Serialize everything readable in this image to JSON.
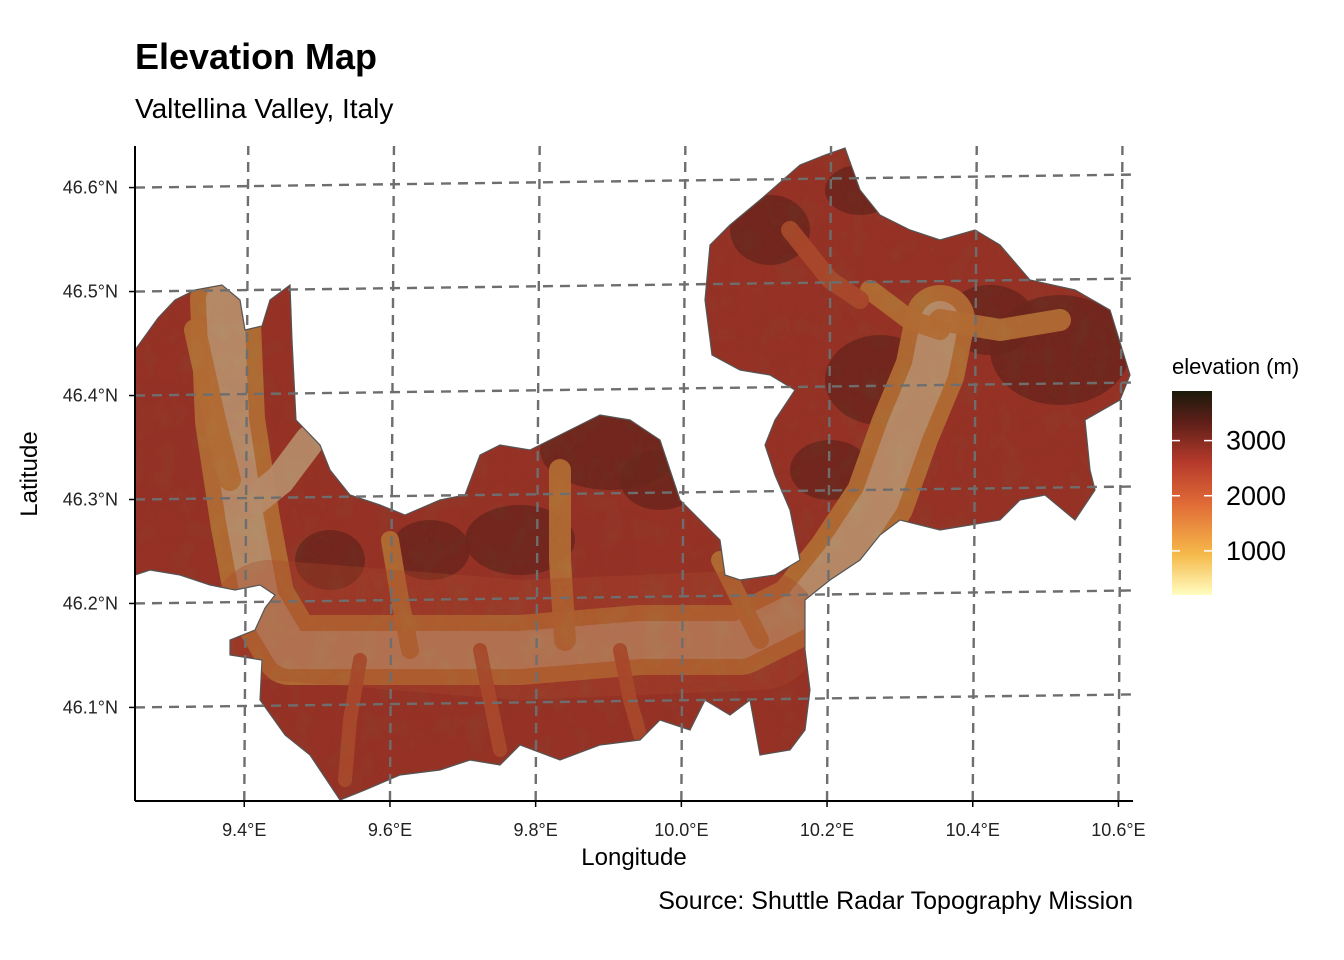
{
  "title": "Elevation Map",
  "subtitle": "Valtellina Valley, Italy",
  "caption": "Source: Shuttle Radar Topography Mission",
  "axes": {
    "xlabel": "Longitude",
    "ylabel": "Latitude",
    "x_ticks": [
      "9.4°E",
      "9.6°E",
      "9.8°E",
      "10.0°E",
      "10.2°E",
      "10.4°E",
      "10.6°E"
    ],
    "y_ticks": [
      "46.6°N",
      "46.5°N",
      "46.4°N",
      "46.3°N",
      "46.2°N",
      "46.1°N"
    ]
  },
  "legend": {
    "title": "elevation (m)",
    "ticks": [
      "3000",
      "2000",
      "1000"
    ]
  },
  "colors": {
    "low": "#fffdc0",
    "mid_low": "#f6b94a",
    "mid": "#e06a36",
    "mid_high": "#b63a2b",
    "high": "#5c1f18",
    "peak": "#1c1a0b",
    "graticule": "#6e6e6e",
    "border": "#555555"
  },
  "chart_data": {
    "type": "heatmap",
    "title": "Elevation Map",
    "subtitle": "Valtellina Valley, Italy",
    "xlabel": "Longitude",
    "ylabel": "Latitude",
    "xlim": [
      9.25,
      10.62
    ],
    "ylim": [
      46.01,
      46.64
    ],
    "x_ticks": [
      9.4,
      9.6,
      9.8,
      10.0,
      10.2,
      10.4,
      10.6
    ],
    "y_ticks": [
      46.1,
      46.2,
      46.3,
      46.4,
      46.5,
      46.6
    ],
    "legend_title": "elevation (m)",
    "color_scale": {
      "min": 200,
      "max": 3900,
      "ticks": [
        1000,
        2000,
        3000
      ]
    },
    "legend_position": "right",
    "grid": true
  }
}
